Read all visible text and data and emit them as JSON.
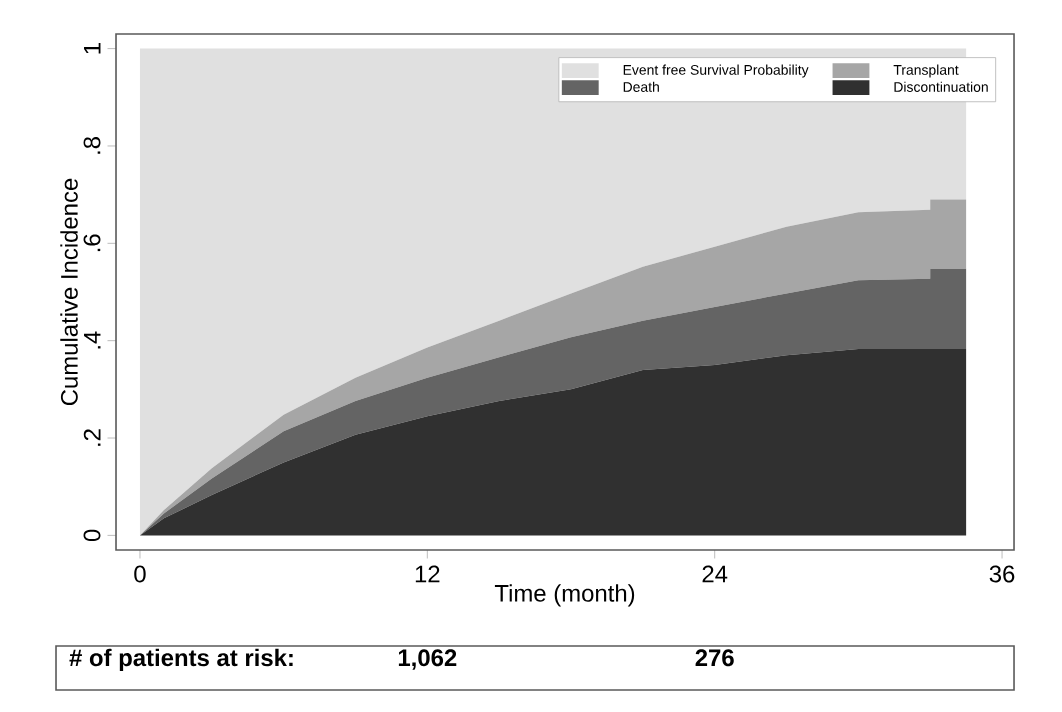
{
  "chart_data": {
    "type": "area",
    "stacked": true,
    "xlabel": "Time (month)",
    "ylabel": "Cumulative Incidence",
    "x": [
      0,
      1,
      3,
      6,
      9,
      12,
      15,
      18,
      21,
      24,
      27,
      30,
      33,
      33,
      34.5
    ],
    "series": [
      {
        "name": "Discontinuation",
        "color": "#303030",
        "values": [
          0,
          0.035,
          0.083,
          0.15,
          0.207,
          0.245,
          0.276,
          0.3,
          0.34,
          0.35,
          0.37,
          0.383,
          0.383,
          0.383,
          0.383
        ]
      },
      {
        "name": "Death",
        "color": "#646464",
        "values": [
          0,
          0.01,
          0.034,
          0.064,
          0.069,
          0.079,
          0.09,
          0.107,
          0.101,
          0.119,
          0.127,
          0.141,
          0.144,
          0.165,
          0.165
        ]
      },
      {
        "name": "Transplant",
        "color": "#a6a6a6",
        "values": [
          0,
          0.007,
          0.021,
          0.034,
          0.048,
          0.062,
          0.075,
          0.09,
          0.111,
          0.124,
          0.137,
          0.14,
          0.142,
          0.142,
          0.142
        ]
      },
      {
        "name": "Event free Survival Probability",
        "color": "#e0e0e0",
        "values": [
          1,
          0.948,
          0.862,
          0.752,
          0.676,
          0.614,
          0.559,
          0.503,
          0.448,
          0.407,
          0.366,
          0.336,
          0.331,
          0.31,
          0.31
        ]
      }
    ],
    "xlim": [
      -1,
      36.5
    ],
    "ylim": [
      -0.03,
      1.03
    ],
    "xticks": [
      0,
      12,
      24,
      36
    ],
    "yticks": [
      0,
      {
        "value": 0.2,
        "label": ".2"
      },
      {
        "value": 0.4,
        "label": ".4"
      },
      {
        "value": 0.6,
        "label": ".6"
      },
      {
        "value": 0.8,
        "label": ".8"
      },
      1
    ],
    "legend": "top right",
    "grid": false,
    "annotations": [
      "# of patients at risk:",
      "1,062",
      "276"
    ]
  }
}
